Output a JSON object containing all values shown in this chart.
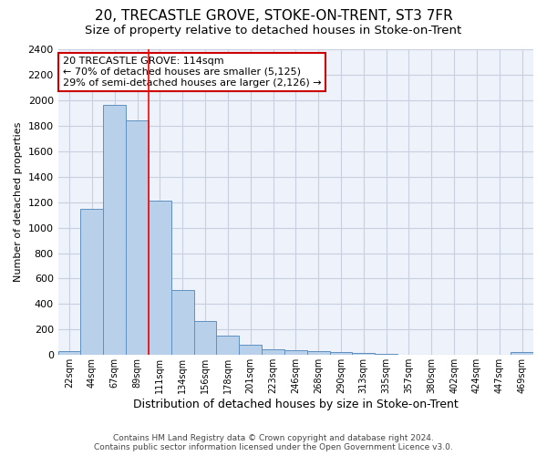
{
  "title": "20, TRECASTLE GROVE, STOKE-ON-TRENT, ST3 7FR",
  "subtitle": "Size of property relative to detached houses in Stoke-on-Trent",
  "xlabel": "Distribution of detached houses by size in Stoke-on-Trent",
  "ylabel": "Number of detached properties",
  "categories": [
    "22sqm",
    "44sqm",
    "67sqm",
    "89sqm",
    "111sqm",
    "134sqm",
    "156sqm",
    "178sqm",
    "201sqm",
    "223sqm",
    "246sqm",
    "268sqm",
    "290sqm",
    "313sqm",
    "335sqm",
    "357sqm",
    "380sqm",
    "402sqm",
    "424sqm",
    "447sqm",
    "469sqm"
  ],
  "values": [
    30,
    1150,
    1960,
    1840,
    1210,
    510,
    265,
    155,
    80,
    45,
    40,
    30,
    22,
    15,
    10,
    5,
    5,
    5,
    3,
    2,
    20
  ],
  "bar_color": "#b8d0ea",
  "bar_edge_color": "#6090c0",
  "red_line_index": 4,
  "annotation_title": "20 TRECASTLE GROVE: 114sqm",
  "annotation_line1": "← 70% of detached houses are smaller (5,125)",
  "annotation_line2": "29% of semi-detached houses are larger (2,126) →",
  "footer1": "Contains HM Land Registry data © Crown copyright and database right 2024.",
  "footer2": "Contains public sector information licensed under the Open Government Licence v3.0.",
  "ylim": [
    0,
    2400
  ],
  "yticks": [
    0,
    200,
    400,
    600,
    800,
    1000,
    1200,
    1400,
    1600,
    1800,
    2000,
    2200,
    2400
  ],
  "bg_color": "#eef2fa",
  "grid_color": "#c8d0e0",
  "title_fontsize": 11,
  "subtitle_fontsize": 9.5,
  "annotation_box_color": "#ffffff",
  "annotation_box_edge": "#cc0000"
}
